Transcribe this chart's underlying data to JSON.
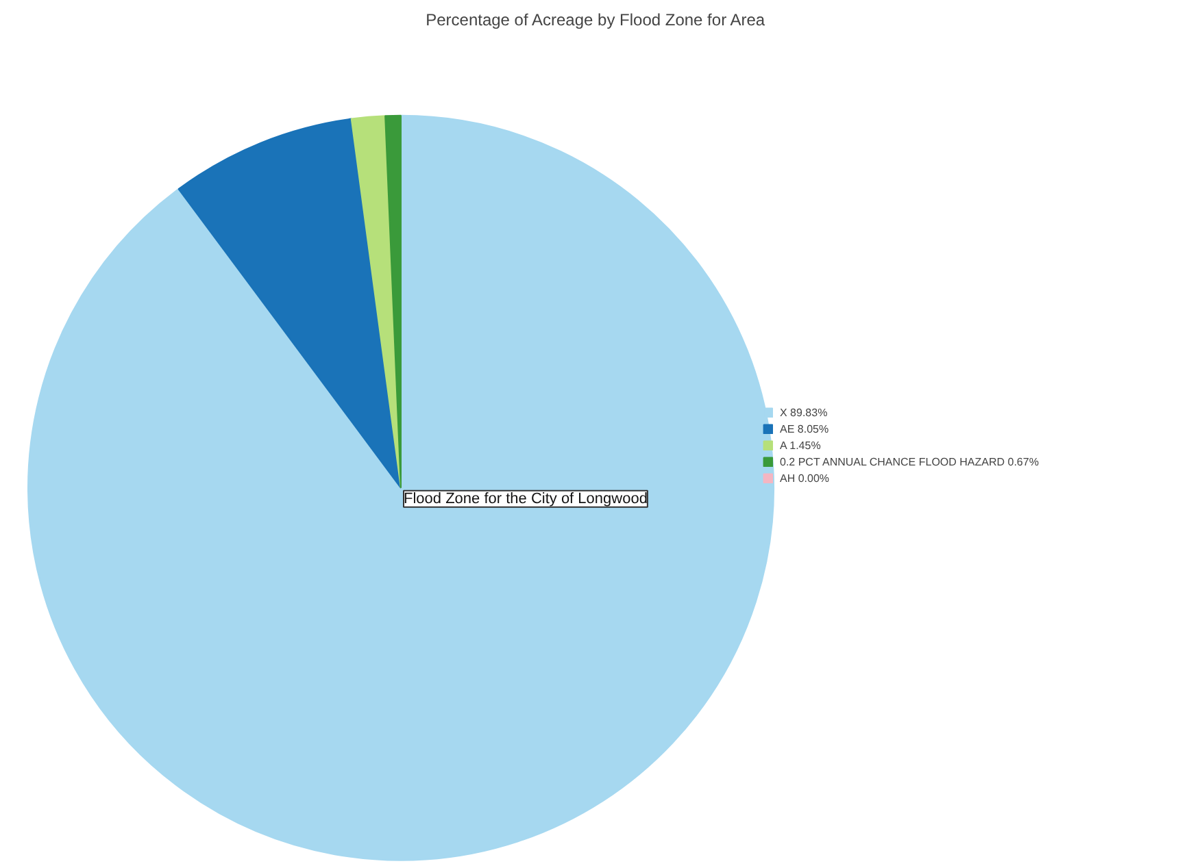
{
  "chart_data": {
    "type": "pie",
    "title": "Percentage of Acreage by Flood Zone for Area",
    "categories": [
      "X 89.83%",
      "AE 8.05%",
      "A 1.45%",
      "0.2 PCT ANNUAL CHANCE FLOOD HAZARD 0.67%",
      "AH 0.00%"
    ],
    "values": [
      89.83,
      8.05,
      1.45,
      0.67,
      0
    ],
    "colors": [
      "#a6d8f0",
      "#1a73b8",
      "#b6e07a",
      "#3a9a3a",
      "#f4b6c2"
    ],
    "legend": "right",
    "annotations": [
      "Flood Zone for the City of Longwood"
    ]
  }
}
